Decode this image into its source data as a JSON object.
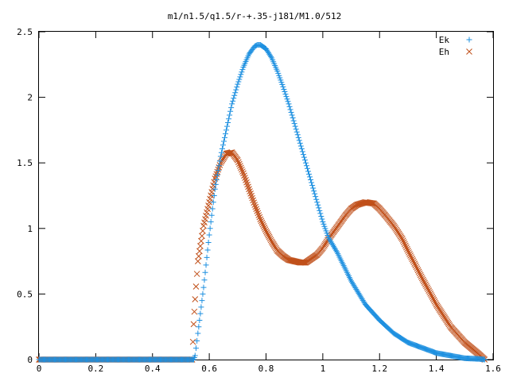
{
  "chart_data": {
    "type": "scatter",
    "title": "m1/n1.5/q1.5/r-+.35-j181/M1.0/512",
    "xlabel": "",
    "ylabel": "",
    "xlim": [
      0,
      1.6
    ],
    "ylim": [
      0,
      2.5
    ],
    "x_ticks": [
      "0",
      "0.2",
      "0.4",
      "0.6",
      "0.8",
      "1",
      "1.2",
      "1.4",
      "1.6"
    ],
    "y_ticks": [
      "0",
      "0.5",
      "1",
      "1.5",
      "2",
      "2.5"
    ],
    "grid": false,
    "legend_position": "top-right",
    "series": [
      {
        "name": "Ek",
        "marker": "plus",
        "color": "#1e90e0",
        "points": [
          [
            0.0,
            0.0
          ],
          [
            0.1,
            0.0
          ],
          [
            0.2,
            0.0
          ],
          [
            0.3,
            0.0
          ],
          [
            0.4,
            0.0
          ],
          [
            0.5,
            0.0
          ],
          [
            0.545,
            0.0
          ],
          [
            0.55,
            0.03
          ],
          [
            0.56,
            0.2
          ],
          [
            0.58,
            0.55
          ],
          [
            0.6,
            0.95
          ],
          [
            0.62,
            1.3
          ],
          [
            0.64,
            1.55
          ],
          [
            0.66,
            1.75
          ],
          [
            0.68,
            1.95
          ],
          [
            0.7,
            2.1
          ],
          [
            0.72,
            2.23
          ],
          [
            0.74,
            2.33
          ],
          [
            0.76,
            2.39
          ],
          [
            0.77,
            2.4
          ],
          [
            0.78,
            2.4
          ],
          [
            0.8,
            2.37
          ],
          [
            0.82,
            2.3
          ],
          [
            0.84,
            2.2
          ],
          [
            0.86,
            2.08
          ],
          [
            0.88,
            1.95
          ],
          [
            0.9,
            1.8
          ],
          [
            0.92,
            1.65
          ],
          [
            0.94,
            1.5
          ],
          [
            0.96,
            1.35
          ],
          [
            0.98,
            1.2
          ],
          [
            1.0,
            1.05
          ],
          [
            1.02,
            0.93
          ],
          [
            1.05,
            0.82
          ],
          [
            1.1,
            0.6
          ],
          [
            1.15,
            0.42
          ],
          [
            1.2,
            0.3
          ],
          [
            1.25,
            0.2
          ],
          [
            1.3,
            0.13
          ],
          [
            1.35,
            0.09
          ],
          [
            1.4,
            0.05
          ],
          [
            1.45,
            0.03
          ],
          [
            1.5,
            0.01
          ],
          [
            1.55,
            0.005
          ],
          [
            1.57,
            0.0
          ]
        ]
      },
      {
        "name": "Eh",
        "marker": "cross",
        "color": "#c0501a",
        "points": [
          [
            0.0,
            0.0
          ],
          [
            0.1,
            0.0
          ],
          [
            0.2,
            0.0
          ],
          [
            0.3,
            0.0
          ],
          [
            0.4,
            0.0
          ],
          [
            0.5,
            0.0
          ],
          [
            0.54,
            0.0
          ],
          [
            0.545,
            0.27
          ],
          [
            0.55,
            0.46
          ],
          [
            0.56,
            0.75
          ],
          [
            0.58,
            1.02
          ],
          [
            0.6,
            1.2
          ],
          [
            0.62,
            1.38
          ],
          [
            0.64,
            1.5
          ],
          [
            0.66,
            1.57
          ],
          [
            0.68,
            1.58
          ],
          [
            0.7,
            1.52
          ],
          [
            0.72,
            1.42
          ],
          [
            0.74,
            1.3
          ],
          [
            0.76,
            1.18
          ],
          [
            0.78,
            1.07
          ],
          [
            0.8,
            0.98
          ],
          [
            0.82,
            0.9
          ],
          [
            0.84,
            0.83
          ],
          [
            0.86,
            0.79
          ],
          [
            0.88,
            0.76
          ],
          [
            0.9,
            0.75
          ],
          [
            0.92,
            0.74
          ],
          [
            0.94,
            0.74
          ],
          [
            0.96,
            0.77
          ],
          [
            0.98,
            0.8
          ],
          [
            1.0,
            0.85
          ],
          [
            1.02,
            0.92
          ],
          [
            1.04,
            0.98
          ],
          [
            1.06,
            1.04
          ],
          [
            1.08,
            1.1
          ],
          [
            1.1,
            1.15
          ],
          [
            1.12,
            1.18
          ],
          [
            1.15,
            1.2
          ],
          [
            1.18,
            1.19
          ],
          [
            1.2,
            1.15
          ],
          [
            1.22,
            1.1
          ],
          [
            1.25,
            1.02
          ],
          [
            1.28,
            0.92
          ],
          [
            1.3,
            0.83
          ],
          [
            1.35,
            0.62
          ],
          [
            1.4,
            0.42
          ],
          [
            1.45,
            0.25
          ],
          [
            1.5,
            0.13
          ],
          [
            1.55,
            0.04
          ],
          [
            1.57,
            0.0
          ]
        ]
      }
    ]
  }
}
